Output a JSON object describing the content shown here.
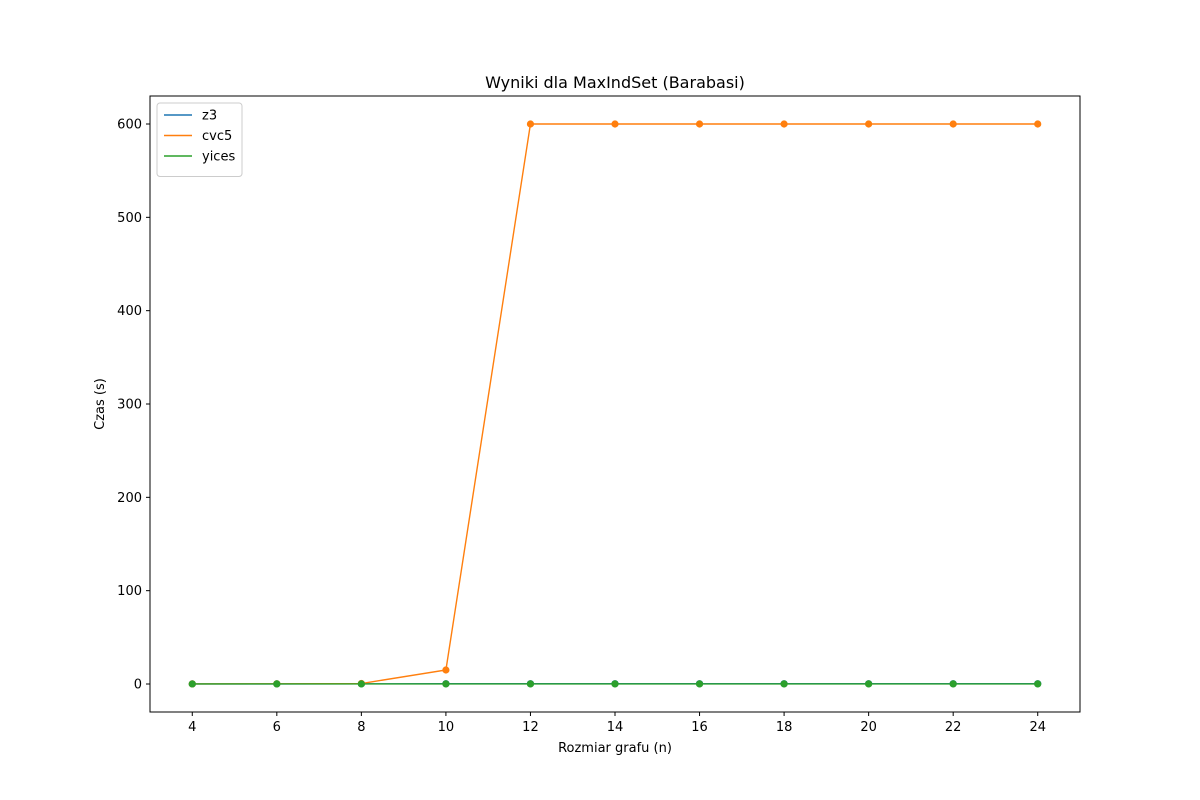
{
  "chart_data": {
    "type": "line",
    "title": "Wyniki dla MaxIndSet (Barabasi)",
    "xlabel": "Rozmiar grafu (n)",
    "ylabel": "Czas (s)",
    "x": [
      4,
      6,
      8,
      10,
      12,
      14,
      16,
      18,
      20,
      22,
      24
    ],
    "xlim": [
      3,
      25
    ],
    "ylim": [
      -30,
      630
    ],
    "xticks": [
      4,
      6,
      8,
      10,
      12,
      14,
      16,
      18,
      20,
      22,
      24
    ],
    "yticks": [
      0,
      100,
      200,
      300,
      400,
      500,
      600
    ],
    "grid": false,
    "legend_position": "top-left",
    "series": [
      {
        "name": "z3",
        "color": "#1f77b4",
        "values": [
          0.1,
          0.1,
          0.2,
          0.3,
          0.3,
          0.3,
          0.3,
          0.3,
          0.3,
          0.3,
          0.3
        ]
      },
      {
        "name": "cvc5",
        "color": "#ff7f0e",
        "values": [
          0.1,
          0.2,
          0.5,
          15,
          600,
          600,
          600,
          600,
          600,
          600,
          600
        ]
      },
      {
        "name": "yices",
        "color": "#2ca02c",
        "values": [
          0.05,
          0.1,
          0.1,
          0.1,
          0.1,
          0.1,
          0.1,
          0.1,
          0.1,
          0.1,
          0.1
        ]
      }
    ]
  }
}
